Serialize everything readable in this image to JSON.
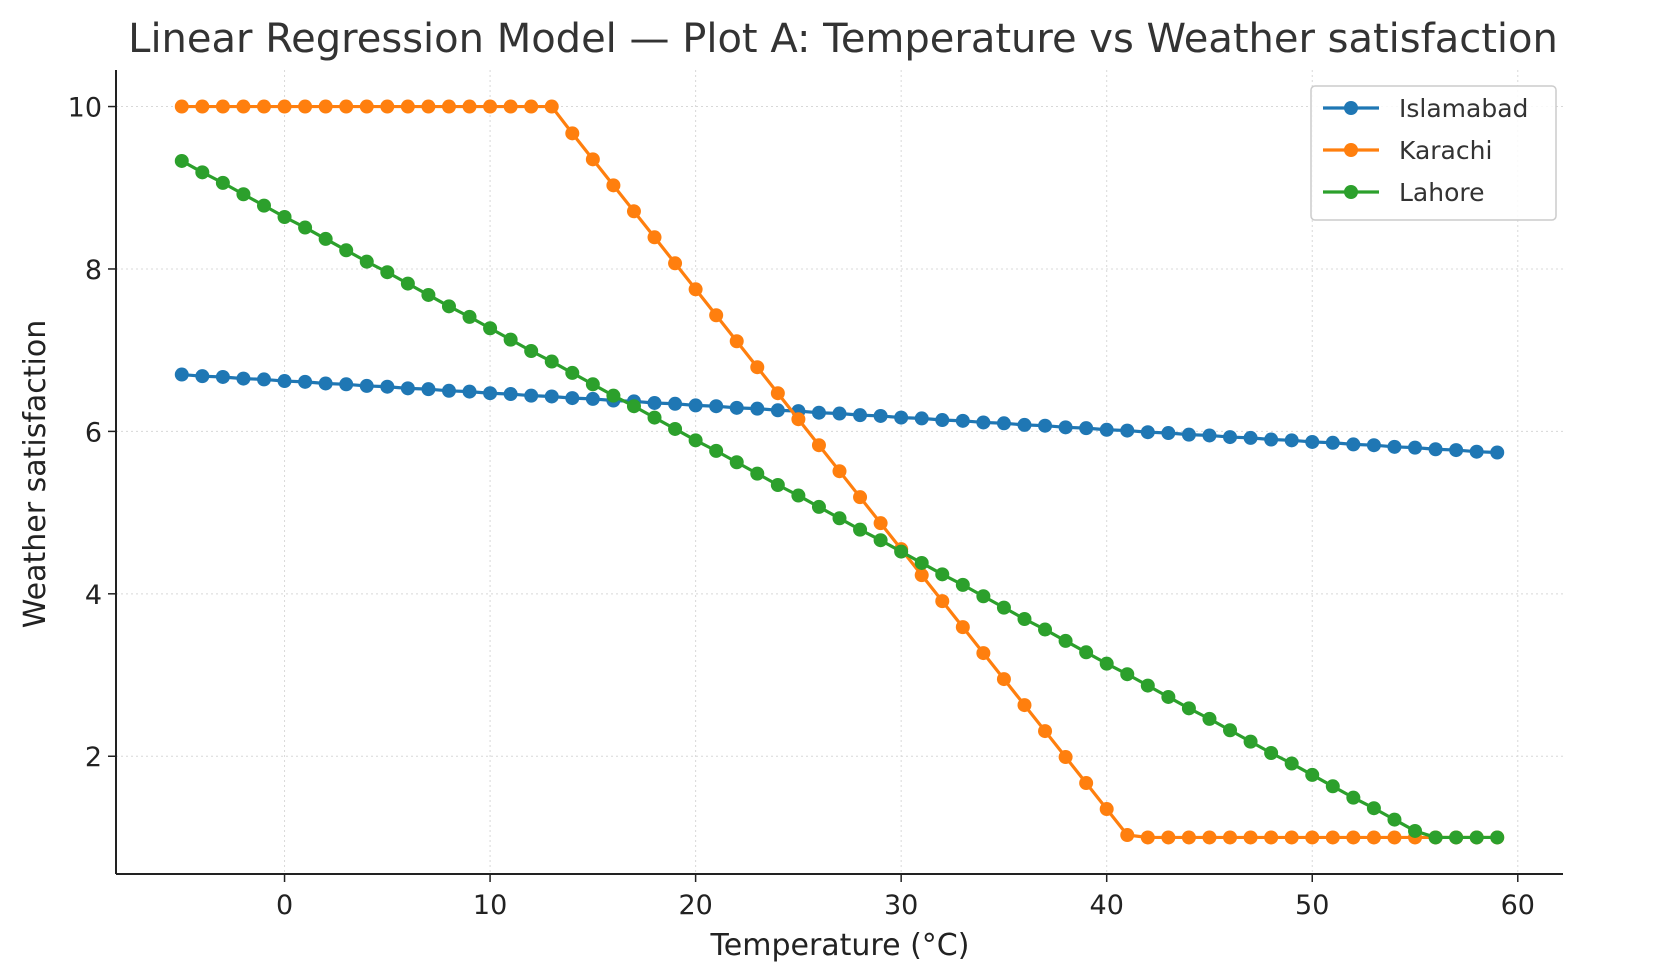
{
  "chart_data": {
    "type": "line",
    "title": "Linear Regression Model — Plot A: Temperature vs Weather satisfaction",
    "xlabel": "Temperature (°C)",
    "ylabel": "Weather satisfaction",
    "xlim": [
      -8.2,
      62.2
    ],
    "ylim": [
      0.55,
      10.45
    ],
    "xticks": [
      0,
      10,
      20,
      30,
      40,
      50,
      60
    ],
    "yticks": [
      2,
      4,
      6,
      8,
      10
    ],
    "grid": true,
    "legend_position": "top-right",
    "x": [
      -5,
      -4,
      -3,
      -2,
      -1,
      0,
      1,
      2,
      3,
      4,
      5,
      6,
      7,
      8,
      9,
      10,
      11,
      12,
      13,
      14,
      15,
      16,
      17,
      18,
      19,
      20,
      21,
      22,
      23,
      24,
      25,
      26,
      27,
      28,
      29,
      30,
      31,
      32,
      33,
      34,
      35,
      36,
      37,
      38,
      39,
      40,
      41,
      42,
      43,
      44,
      45,
      46,
      47,
      48,
      49,
      50,
      51,
      52,
      53,
      54,
      55,
      56,
      57,
      58,
      59
    ],
    "series": [
      {
        "name": "Islamabad",
        "color": "#1f77b4",
        "values": [
          6.7,
          6.68,
          6.67,
          6.65,
          6.64,
          6.62,
          6.61,
          6.59,
          6.58,
          6.56,
          6.55,
          6.53,
          6.52,
          6.5,
          6.49,
          6.47,
          6.46,
          6.44,
          6.43,
          6.41,
          6.4,
          6.38,
          6.37,
          6.35,
          6.34,
          6.32,
          6.31,
          6.29,
          6.28,
          6.26,
          6.25,
          6.23,
          6.22,
          6.2,
          6.19,
          6.17,
          6.16,
          6.14,
          6.13,
          6.11,
          6.1,
          6.08,
          6.07,
          6.05,
          6.04,
          6.02,
          6.01,
          5.99,
          5.98,
          5.96,
          5.95,
          5.93,
          5.92,
          5.9,
          5.89,
          5.87,
          5.86,
          5.84,
          5.83,
          5.81,
          5.8,
          5.78,
          5.77,
          5.75,
          5.74
        ]
      },
      {
        "name": "Karachi",
        "color": "#ff7f0e",
        "values": [
          10,
          10,
          10,
          10,
          10,
          10,
          10,
          10,
          10,
          10,
          10,
          10,
          10,
          10,
          10,
          10,
          10,
          10,
          10,
          9.67,
          9.35,
          9.03,
          8.71,
          8.39,
          8.07,
          7.75,
          7.43,
          7.11,
          6.79,
          6.47,
          6.15,
          5.83,
          5.51,
          5.19,
          4.87,
          4.55,
          4.23,
          3.91,
          3.59,
          3.27,
          2.95,
          2.63,
          2.31,
          1.99,
          1.67,
          1.35,
          1.03,
          1,
          1,
          1,
          1,
          1,
          1,
          1,
          1,
          1,
          1,
          1,
          1,
          1,
          1,
          1,
          1,
          1,
          1
        ]
      },
      {
        "name": "Lahore",
        "color": "#2ca02c",
        "values": [
          9.33,
          9.19,
          9.06,
          8.92,
          8.78,
          8.64,
          8.51,
          8.37,
          8.23,
          8.09,
          7.96,
          7.82,
          7.68,
          7.54,
          7.41,
          7.27,
          7.13,
          6.99,
          6.86,
          6.72,
          6.58,
          6.44,
          6.31,
          6.17,
          6.03,
          5.89,
          5.76,
          5.62,
          5.48,
          5.34,
          5.21,
          5.07,
          4.93,
          4.79,
          4.66,
          4.52,
          4.38,
          4.24,
          4.11,
          3.97,
          3.83,
          3.69,
          3.56,
          3.42,
          3.28,
          3.14,
          3.01,
          2.87,
          2.73,
          2.59,
          2.46,
          2.32,
          2.18,
          2.04,
          1.91,
          1.77,
          1.63,
          1.49,
          1.36,
          1.22,
          1.08,
          1,
          1,
          1,
          1
        ]
      }
    ]
  }
}
